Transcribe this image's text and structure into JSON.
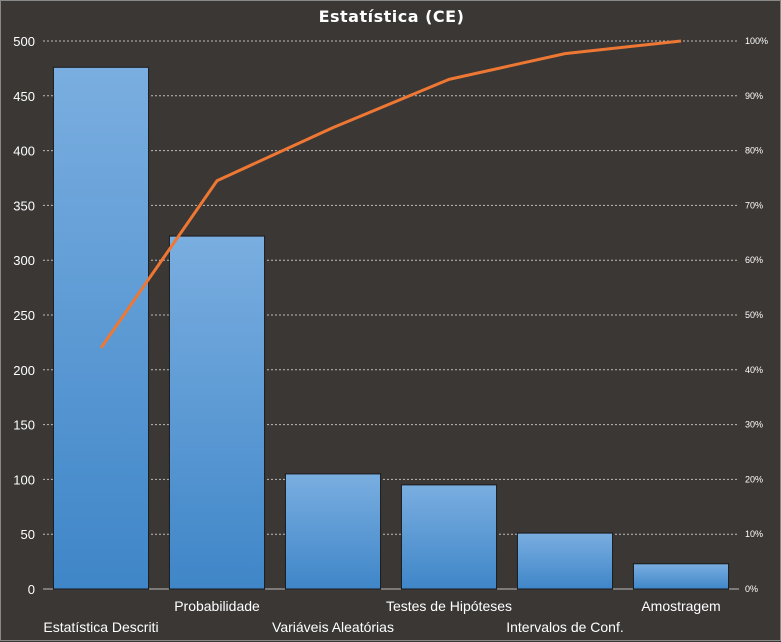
{
  "chart_data": {
    "type": "bar",
    "title": "Estatística  (CE)",
    "categories": [
      "Estatística Descriti",
      "Probabilidade",
      "Variáveis Aleatórias",
      "Testes de Hipóteses",
      "Intervalos de Conf.",
      "Amostragem"
    ],
    "series": [
      {
        "type": "bar",
        "axis": "left",
        "values": [
          476,
          322,
          105,
          95,
          51,
          23
        ]
      },
      {
        "type": "line",
        "axis": "right",
        "values": [
          0.44,
          0.745,
          0.842,
          0.93,
          0.977,
          1.0
        ]
      }
    ],
    "y_left": {
      "ylim": [
        0,
        500
      ],
      "ticks": [
        0,
        50,
        100,
        150,
        200,
        250,
        300,
        350,
        400,
        450,
        500
      ]
    },
    "y_right": {
      "ylim": [
        0,
        1
      ],
      "ticks": [
        "0%",
        "10%",
        "20%",
        "30%",
        "40%",
        "50%",
        "60%",
        "70%",
        "80%",
        "90%",
        "100%"
      ]
    },
    "grid": true,
    "legend": "none",
    "colors": {
      "background": "#3a3735",
      "bar_top": "#7aaee0",
      "bar_bottom": "#3f86c8",
      "bar_stroke": "#1a1a1a",
      "line": "#ee7733",
      "grid": "#bdbdbd",
      "text": "#ffffff"
    }
  }
}
